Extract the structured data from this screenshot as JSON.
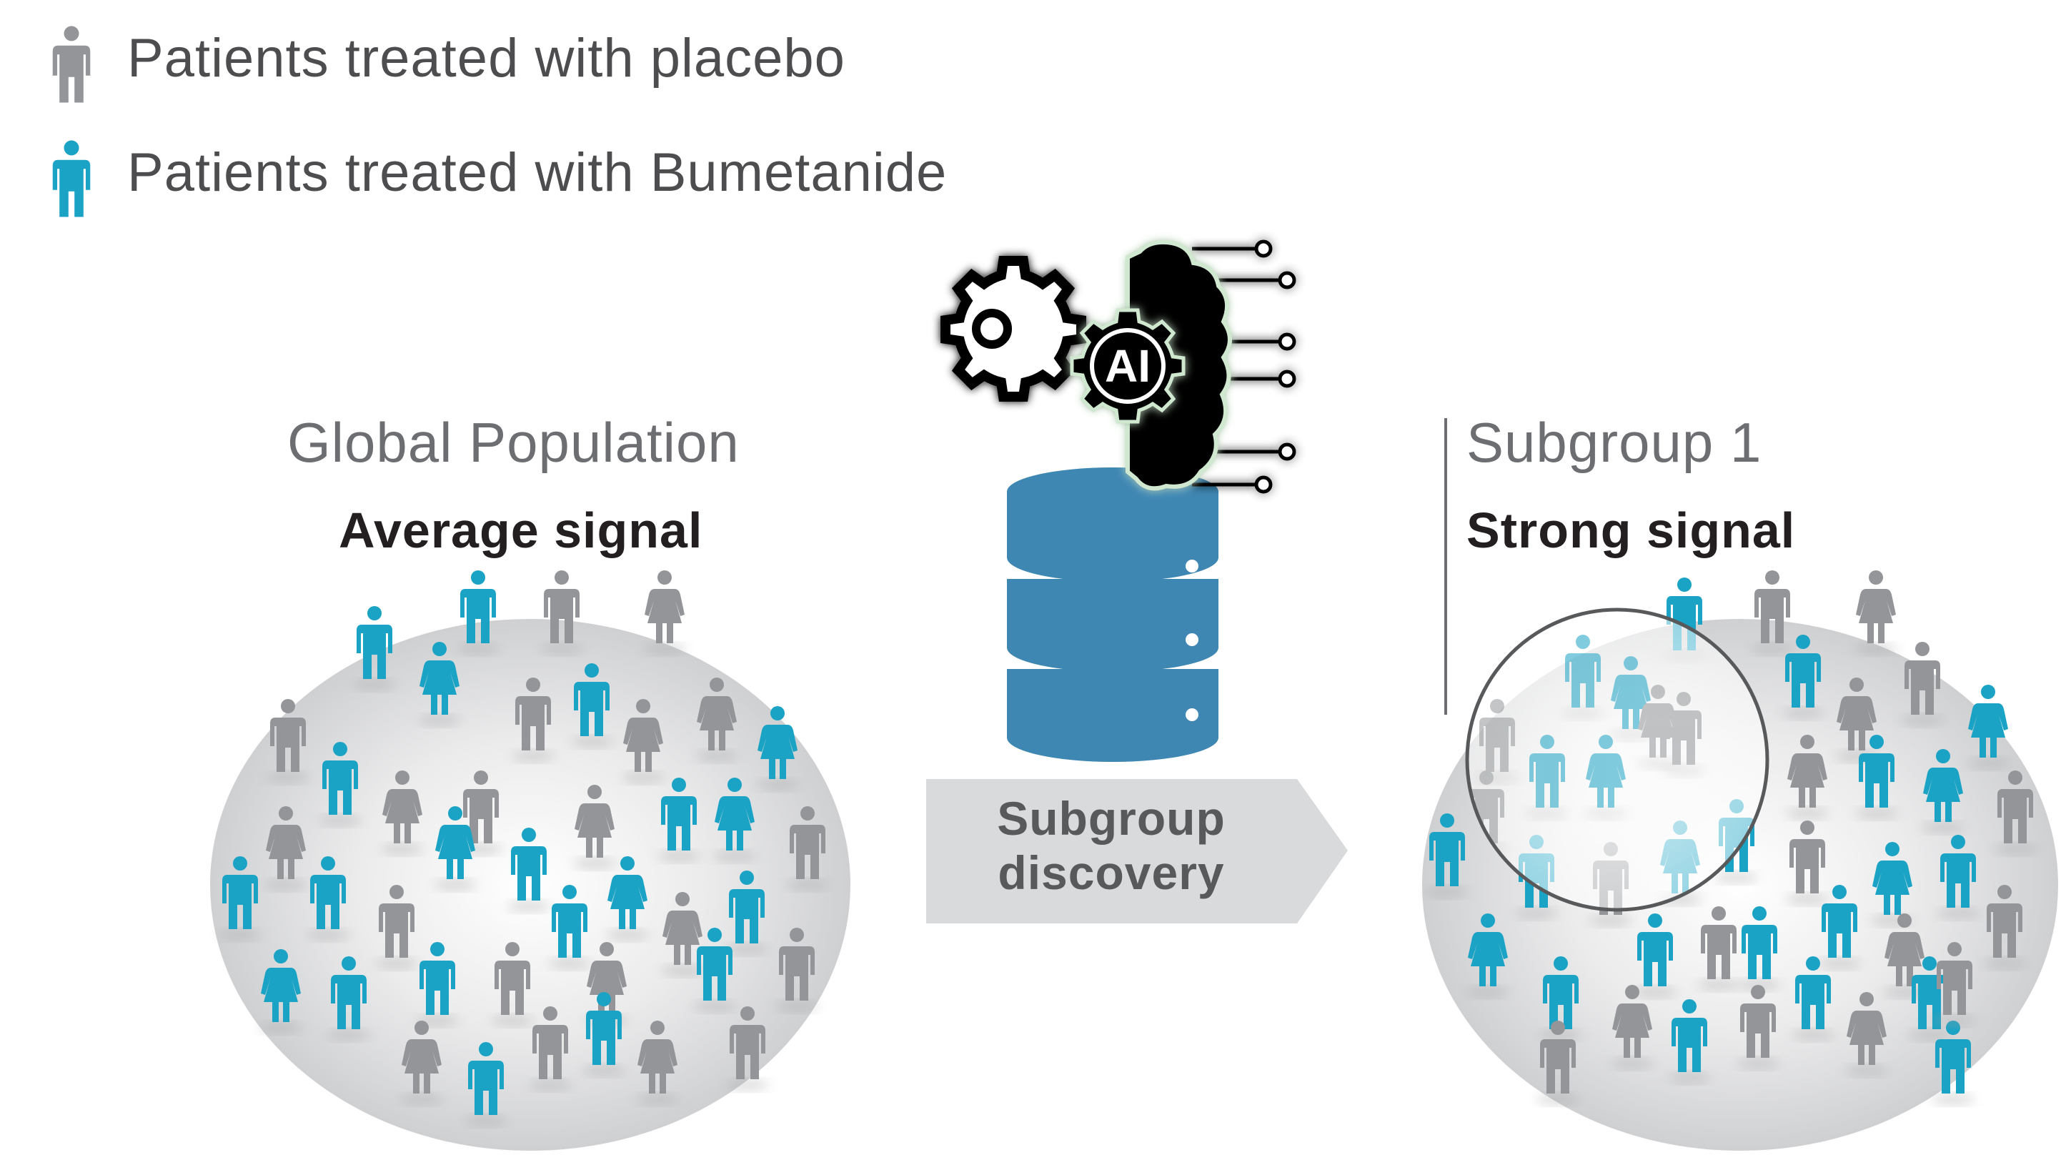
{
  "legend": {
    "placebo": {
      "label": "Patients treated with placebo",
      "color": "#939598"
    },
    "bumetanide": {
      "label": "Patients treated with Bumetanide",
      "color": "#1aa3c4"
    }
  },
  "global": {
    "title": "Global Population",
    "subtitle": "Average signal"
  },
  "arrow": {
    "line1": "Subgroup",
    "line2": "discovery"
  },
  "ai_badge": "AI",
  "subgroup": {
    "title": "Subgroup 1",
    "subtitle": "Strong signal"
  },
  "colors": {
    "placebo": "#939598",
    "treated": "#1aa3c4",
    "database": "#3f87b3",
    "population_bg": "#d1d2d4",
    "arrow_bg": "#d9dadb"
  }
}
